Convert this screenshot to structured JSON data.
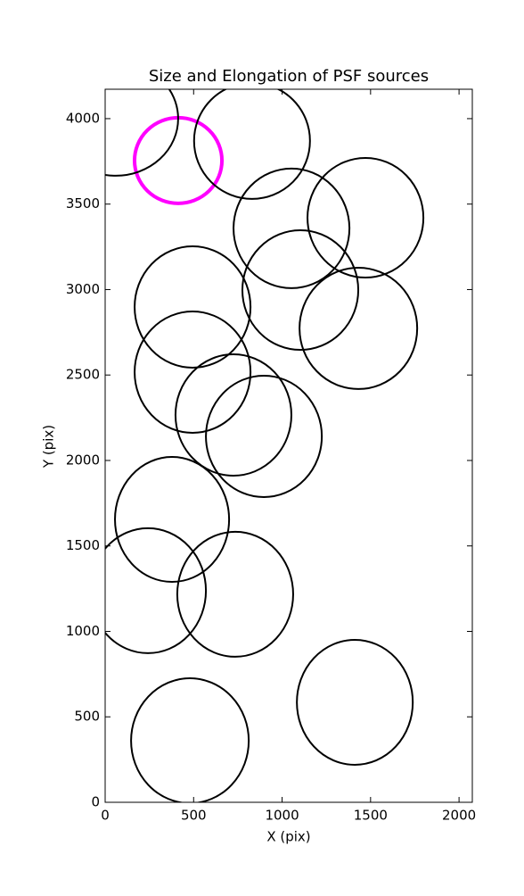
{
  "chart_data": {
    "type": "ellipse",
    "title": "Size and Elongation of PSF sources",
    "x_label": "X (pix)",
    "y_label": "Y (pix)",
    "xlim": [
      0,
      2075
    ],
    "ylim": [
      0,
      4172
    ],
    "xticks": [
      0,
      500,
      1000,
      1500,
      2000
    ],
    "yticks": [
      0,
      500,
      1000,
      1500,
      2000,
      2500,
      3000,
      3500,
      4000
    ],
    "series": [
      {
        "x": [
          413,
          60,
          830,
          1471,
          1053,
          1103,
          494,
          1431,
          494,
          725,
          897,
          378,
          242,
          735,
          1411,
          479
        ],
        "y": [
          3755,
          4000,
          3870,
          3420,
          3358,
          2997,
          2898,
          2773,
          2517,
          2266,
          2141,
          1655,
          1238,
          1217,
          585,
          360
        ],
        "widths": [
          494,
          705,
          655,
          655,
          655,
          655,
          655,
          665,
          655,
          655,
          655,
          645,
          655,
          655,
          655,
          665
        ],
        "heights": [
          501,
          668,
          679,
          700,
          700,
          700,
          710,
          710,
          710,
          710,
          710,
          731,
          731,
          731,
          731,
          731
        ],
        "colors": [
          "#ff00ff",
          "#000000",
          "#000000",
          "#000000",
          "#000000",
          "#000000",
          "#000000",
          "#000000",
          "#000000",
          "#000000",
          "#000000",
          "#000000",
          "#000000",
          "#000000",
          "#000000",
          "#000000"
        ],
        "linewidths": [
          4,
          2,
          2,
          2,
          2,
          2,
          2,
          2,
          2,
          2,
          2,
          2,
          2,
          2,
          2,
          2
        ]
      }
    ]
  }
}
